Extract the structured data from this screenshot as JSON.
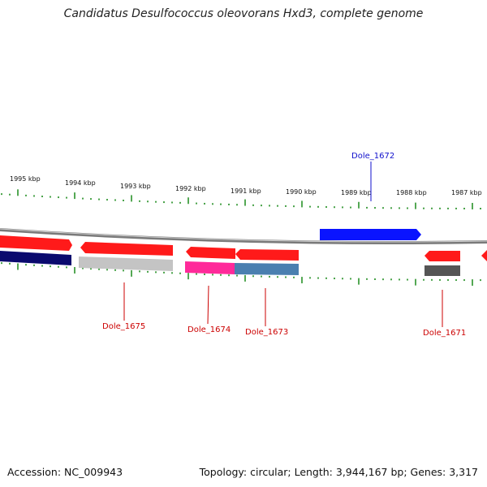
{
  "title": "Candidatus Desulfococcus oleovorans Hxd3, complete genome",
  "footer": {
    "accession": "Accession: NC_009943",
    "topology": "Topology: circular; Length: 3,944,167 bp; Genes: 3,317"
  },
  "colors": {
    "gene_red": "#ff1a1a",
    "gene_blue": "#0a14ff",
    "gene_navy": "#0a0a6e",
    "gene_gray": "#c4c4c4",
    "gene_dark_gray": "#555555",
    "gene_magenta": "#ff2a9a",
    "gene_steel": "#4a7fb0",
    "tick_green": "#1a8a1a",
    "backbone": "#7a7a7a",
    "label_red": "#cc0000",
    "label_blue": "#1010cc"
  },
  "ruler": [
    "1995 kbp",
    "1994 kbp",
    "1993 kbp",
    "1992 kbp",
    "1991 kbp",
    "1990 kbp",
    "1989 kbp",
    "1988 kbp",
    "1987 kbp"
  ],
  "gene_labels": [
    "Dole_1675",
    "Dole_1674",
    "Dole_1673",
    "Dole_1672",
    "Dole_1671"
  ]
}
